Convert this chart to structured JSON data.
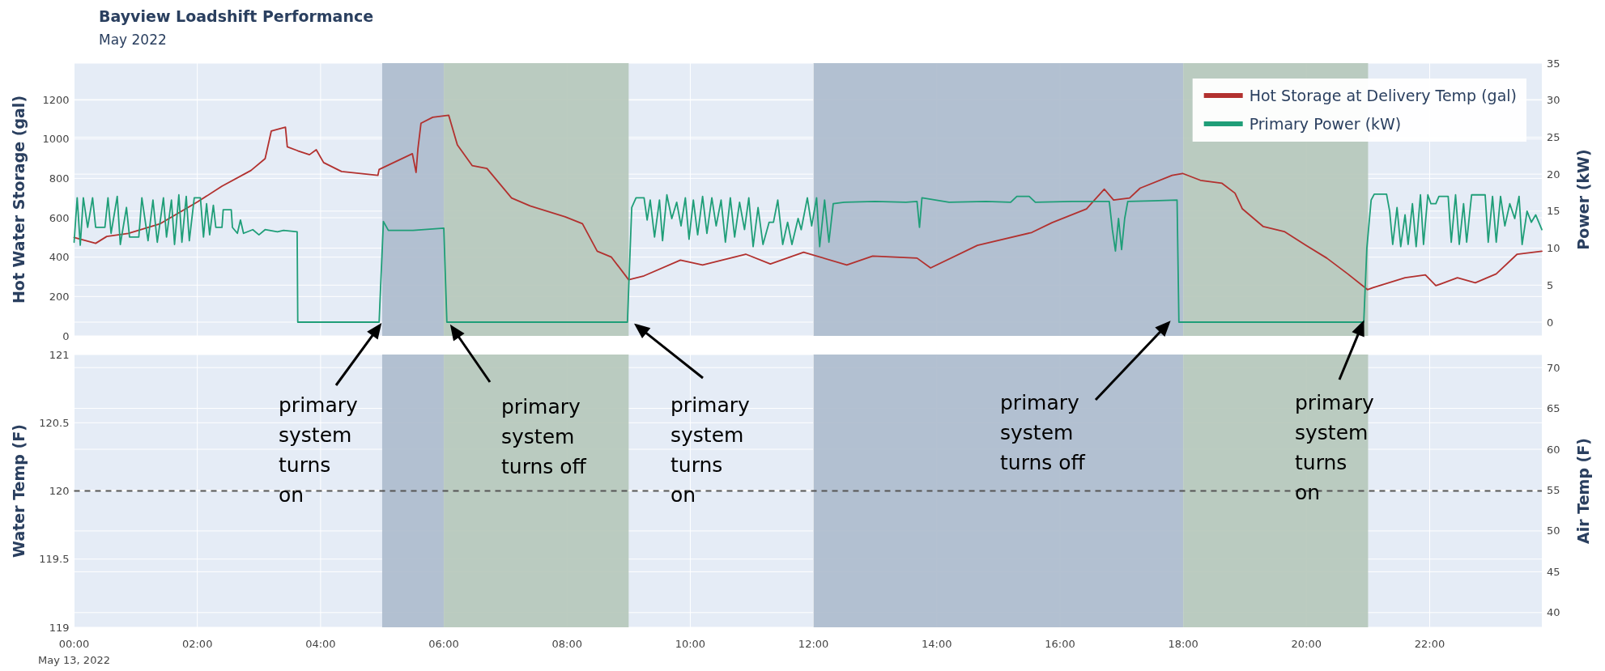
{
  "chart_data": [
    {
      "type": "line",
      "title": "Bayview Loadshift Performance",
      "subtitle": "May 2022",
      "ylabel": "Hot Water Storage (gal)",
      "y2label": "Power (kW)",
      "xlim": [
        0,
        23.82
      ],
      "xticks": [
        {
          "value": 0,
          "label": null
        },
        {
          "value": 2,
          "label": null
        },
        {
          "value": 4,
          "label": null
        },
        {
          "value": 6,
          "label": null
        },
        {
          "value": 8,
          "label": null
        },
        {
          "value": 10,
          "label": null
        },
        {
          "value": 12,
          "label": null
        },
        {
          "value": 14,
          "label": null
        },
        {
          "value": 16,
          "label": null
        },
        {
          "value": 18,
          "label": null
        },
        {
          "value": 20,
          "label": null
        },
        {
          "value": 22,
          "label": null
        }
      ],
      "ylim": [
        0,
        1385
      ],
      "yticks": [
        0,
        200,
        400,
        600,
        800,
        1000,
        1200
      ],
      "y2lim": [
        -1.86,
        35
      ],
      "y2ticks": [
        0,
        5,
        10,
        15,
        20,
        25,
        30,
        35
      ],
      "tick_labels": "y",
      "grid": true,
      "legend": "top right",
      "bands": [
        {
          "axis": "x",
          "from": 5,
          "to": 6,
          "color": "#aebccd"
        },
        {
          "axis": "x",
          "from": 6,
          "to": 9,
          "color": "#b6c8bb"
        },
        {
          "axis": "x",
          "from": 12,
          "to": 18,
          "color": "#aebccd"
        },
        {
          "axis": "x",
          "from": 18,
          "to": 21,
          "color": "#b6c8bb"
        }
      ],
      "series": [
        {
          "name": "Hot Storage at Delivery Temp (gal)",
          "color": "#b2312f",
          "x": [
            0,
            0.35,
            0.53,
            0.88,
            1.4,
            2.0,
            2.4,
            2.87,
            3.1,
            3.2,
            3.43,
            3.46,
            3.63,
            3.82,
            3.93,
            4.05,
            4.34,
            4.93,
            4.95,
            5.49,
            5.55,
            5.58,
            5.63,
            5.82,
            6.08,
            6.22,
            6.46,
            6.7,
            7.1,
            7.4,
            7.97,
            8.25,
            8.49,
            8.72,
            9.0,
            9.25,
            9.84,
            10.2,
            10.9,
            11.3,
            11.84,
            12.54,
            12.96,
            13.68,
            13.9,
            14.66,
            15.54,
            15.87,
            16.43,
            16.72,
            16.87,
            17.13,
            17.3,
            17.82,
            17.99,
            18.28,
            18.63,
            18.84,
            18.96,
            19.3,
            19.64,
            19.99,
            20.33,
            20.67,
            20.99,
            21.08,
            21.6,
            21.93,
            22.1,
            22.45,
            22.74,
            23.08,
            23.42,
            23.82
          ],
          "values": [
            500,
            470,
            505,
            520,
            570,
            680,
            760,
            840,
            900,
            1040,
            1060,
            960,
            940,
            920,
            945,
            880,
            835,
            815,
            845,
            925,
            830,
            950,
            1080,
            1110,
            1120,
            970,
            865,
            850,
            700,
            660,
            605,
            570,
            430,
            400,
            285,
            305,
            385,
            360,
            415,
            365,
            425,
            360,
            405,
            395,
            345,
            460,
            525,
            575,
            645,
            745,
            690,
            700,
            750,
            815,
            825,
            790,
            775,
            725,
            645,
            555,
            530,
            460,
            395,
            315,
            235,
            245,
            295,
            310,
            255,
            295,
            270,
            315,
            415,
            430
          ]
        },
        {
          "name": "Primary Power (kW)",
          "color": "#1f9e78",
          "axis": "y2",
          "x": [
            0,
            0.05,
            0.1,
            0.15,
            0.22,
            0.3,
            0.35,
            0.5,
            0.55,
            0.6,
            0.7,
            0.75,
            0.85,
            0.9,
            1.05,
            1.1,
            1.2,
            1.28,
            1.35,
            1.45,
            1.5,
            1.58,
            1.63,
            1.7,
            1.75,
            1.82,
            1.87,
            1.95,
            2.05,
            2.1,
            2.15,
            2.2,
            2.26,
            2.3,
            2.4,
            2.42,
            2.55,
            2.57,
            2.65,
            2.7,
            2.75,
            2.9,
            3,
            3.1,
            3.3,
            3.4,
            3.62,
            3.63,
            4.95,
            5.02,
            5.1,
            5.5,
            6,
            6.05,
            8.98,
            9.05,
            9.12,
            9.25,
            9.3,
            9.35,
            9.42,
            9.5,
            9.55,
            9.62,
            9.7,
            9.78,
            9.85,
            9.92,
            9.98,
            10.05,
            10.12,
            10.2,
            10.27,
            10.35,
            10.42,
            10.5,
            10.57,
            10.65,
            10.72,
            10.8,
            10.88,
            10.95,
            11.02,
            11.1,
            11.18,
            11.28,
            11.35,
            11.42,
            11.5,
            11.58,
            11.65,
            11.75,
            11.8,
            11.9,
            11.97,
            12.05,
            12.1,
            12.18,
            12.25,
            12.32,
            12.5,
            13,
            13.5,
            13.68,
            13.72,
            13.76,
            14.2,
            14.8,
            15.2,
            15.3,
            15.5,
            15.6,
            16.2,
            16.8,
            16.85,
            16.9,
            16.95,
            17,
            17.05,
            17.1,
            17.5,
            17.9,
            17.93,
            20.93,
            20.98,
            21.05,
            21.1,
            21.3,
            21.35,
            21.4,
            21.47,
            21.53,
            21.6,
            21.65,
            21.72,
            21.78,
            21.85,
            21.9,
            21.97,
            22.02,
            22.1,
            22.15,
            22.3,
            22.35,
            22.42,
            22.48,
            22.55,
            22.6,
            22.68,
            22.9,
            22.95,
            23.02,
            23.08,
            23.15,
            23.22,
            23.3,
            23.38,
            23.45,
            23.5,
            23.58,
            23.65,
            23.72,
            23.82
          ],
          "values": [
            10.8,
            16.8,
            10.4,
            16.8,
            12.8,
            16.8,
            12.8,
            12.8,
            16.8,
            12,
            17,
            10.5,
            15.5,
            11.5,
            11.5,
            16.8,
            11,
            16.5,
            10.8,
            16.8,
            11.5,
            16.5,
            10.5,
            17.2,
            10.8,
            17,
            11,
            16.8,
            16.8,
            11.5,
            16,
            11.8,
            15.8,
            12.8,
            12.8,
            15.2,
            15.2,
            12.8,
            12,
            13.8,
            12,
            12.5,
            11.8,
            12.5,
            12.2,
            12.4,
            12.2,
            0,
            0,
            13.6,
            12.4,
            12.4,
            12.7,
            0,
            0,
            15.5,
            16.8,
            16.8,
            13.8,
            16.5,
            11.5,
            16.5,
            11,
            17.2,
            14,
            16.2,
            13,
            16.8,
            11.2,
            16.5,
            11.8,
            17,
            12,
            16.8,
            13,
            16.5,
            10.8,
            16.8,
            11.5,
            16.2,
            12.5,
            16.8,
            10.2,
            15.5,
            10.5,
            13.5,
            13.5,
            16.5,
            10.5,
            13.5,
            10.5,
            14,
            12.5,
            16.8,
            13,
            16.8,
            10.2,
            16.5,
            10.8,
            16,
            16.2,
            16.3,
            16.2,
            16.3,
            12.8,
            16.8,
            16.2,
            16.3,
            16.2,
            17,
            17,
            16.2,
            16.3,
            16.3,
            12.5,
            9.6,
            14,
            9.8,
            14,
            16.3,
            16.4,
            16.5,
            0,
            0,
            10,
            16.5,
            17.3,
            17.3,
            15,
            10.5,
            15.5,
            10.2,
            14.5,
            10.5,
            16,
            10.2,
            17.2,
            10.5,
            17.2,
            16,
            16,
            17,
            17,
            10.8,
            17.2,
            10.5,
            16,
            10.8,
            17.2,
            17.2,
            10.8,
            17,
            10.8,
            17,
            13,
            16,
            14,
            17,
            10.5,
            15,
            13.5,
            14.5,
            12.5
          ]
        }
      ],
      "annotations": [
        "primary system turns on",
        "primary system turns off",
        "primary system turns on",
        "primary system turns off",
        "primary system turns on"
      ]
    },
    {
      "type": "line",
      "ylabel": "Water Temp (F)",
      "y2label": "Air Temp (F)",
      "xlim": [
        0,
        23.82
      ],
      "xticks": [
        {
          "value": 0,
          "label": "00:00\nMay 13, 2022"
        },
        {
          "value": 2,
          "label": "02:00"
        },
        {
          "value": 4,
          "label": "04:00"
        },
        {
          "value": 6,
          "label": "06:00"
        },
        {
          "value": 8,
          "label": "08:00"
        },
        {
          "value": 10,
          "label": "10:00"
        },
        {
          "value": 12,
          "label": "12:00"
        },
        {
          "value": 14,
          "label": "14:00"
        },
        {
          "value": 16,
          "label": "16:00"
        },
        {
          "value": 18,
          "label": "18:00"
        },
        {
          "value": 20,
          "label": "20:00"
        },
        {
          "value": 22,
          "label": "22:00"
        }
      ],
      "ylim": [
        119,
        121
      ],
      "yticks": [
        119,
        119.5,
        120,
        120.5,
        121
      ],
      "y2lim": [
        38.2,
        71.6
      ],
      "y2ticks": [
        40,
        45,
        50,
        55,
        60,
        65,
        70
      ],
      "grid": true,
      "bands": [
        {
          "axis": "x",
          "from": 5,
          "to": 6,
          "color": "#aebccd"
        },
        {
          "axis": "x",
          "from": 6,
          "to": 9,
          "color": "#b6c8bb"
        },
        {
          "axis": "x",
          "from": 12,
          "to": 18,
          "color": "#aebccd"
        },
        {
          "axis": "x",
          "from": 18,
          "to": 21,
          "color": "#b6c8bb"
        }
      ],
      "ref_lines": [
        {
          "axis": "y",
          "value": 120,
          "color": "#555555",
          "line_style": "dashed"
        }
      ]
    }
  ]
}
